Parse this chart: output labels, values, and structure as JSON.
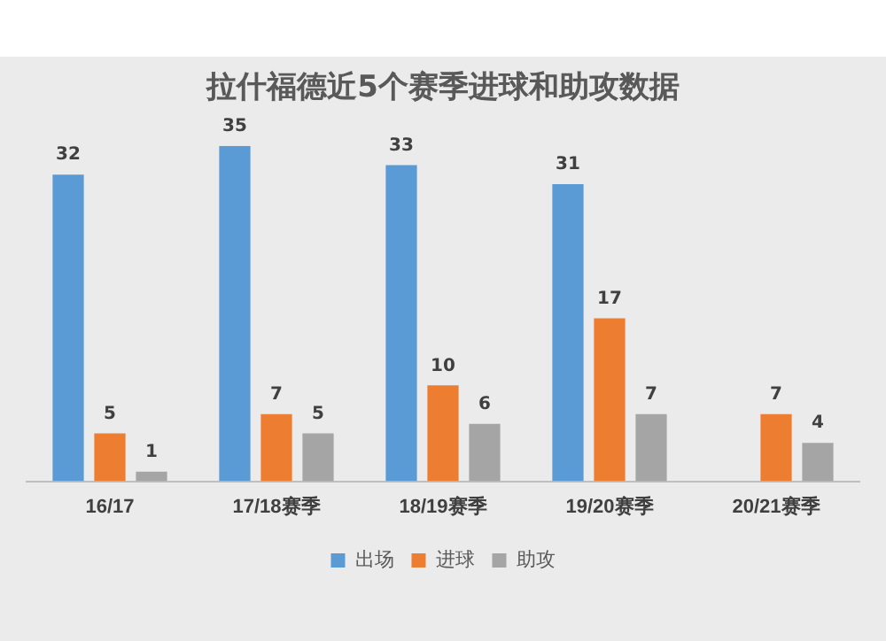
{
  "chart_data": {
    "type": "bar",
    "title": "拉什福德近5个赛季进球和助攻数据",
    "categories": [
      "16/17",
      "17/18赛季",
      "18/19赛季",
      "19/20赛季",
      "20/21赛季"
    ],
    "series": [
      {
        "name": "出场",
        "color": "#5b9bd5",
        "values": [
          32,
          35,
          33,
          31,
          null
        ]
      },
      {
        "name": "进球",
        "color": "#ed7d31",
        "values": [
          5,
          7,
          10,
          17,
          7
        ]
      },
      {
        "name": "助攻",
        "color": "#a5a5a5",
        "values": [
          1,
          5,
          6,
          7,
          4
        ]
      }
    ],
    "data_labels": true,
    "legend": "bottom",
    "grid": false,
    "tick_labels": "x"
  }
}
